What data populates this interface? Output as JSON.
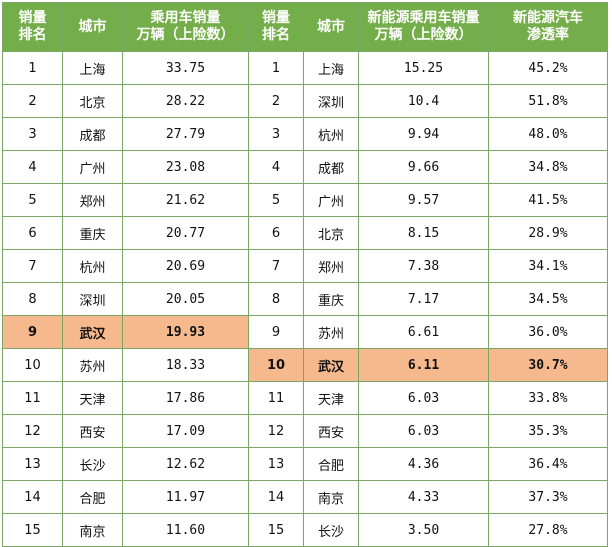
{
  "headers": {
    "rank_left": "销量\n排名",
    "city_left": "城市",
    "sales_left": "乘用车销量\n万辆（上险数）",
    "rank_right": "销量\n排名",
    "city_right": "城市",
    "sales_right": "新能源乘用车销量\n万辆（上险数）",
    "penetration": "新能源汽车\n渗透率"
  },
  "left_rows": [
    {
      "rank": "1",
      "city": "上海",
      "sales": "33.75"
    },
    {
      "rank": "2",
      "city": "北京",
      "sales": "28.22"
    },
    {
      "rank": "3",
      "city": "成都",
      "sales": "27.79"
    },
    {
      "rank": "4",
      "city": "广州",
      "sales": "23.08"
    },
    {
      "rank": "5",
      "city": "郑州",
      "sales": "21.62"
    },
    {
      "rank": "6",
      "city": "重庆",
      "sales": "20.77"
    },
    {
      "rank": "7",
      "city": "杭州",
      "sales": "20.69"
    },
    {
      "rank": "8",
      "city": "深圳",
      "sales": "20.05"
    },
    {
      "rank": "9",
      "city": "武汉",
      "sales": "19.93",
      "highlight": true
    },
    {
      "rank": "10",
      "city": "苏州",
      "sales": "18.33"
    },
    {
      "rank": "11",
      "city": "天津",
      "sales": "17.86"
    },
    {
      "rank": "12",
      "city": "西安",
      "sales": "17.09"
    },
    {
      "rank": "13",
      "city": "长沙",
      "sales": "12.62"
    },
    {
      "rank": "14",
      "city": "合肥",
      "sales": "11.97"
    },
    {
      "rank": "15",
      "city": "南京",
      "sales": "11.60"
    }
  ],
  "right_rows": [
    {
      "rank": "1",
      "city": "上海",
      "sales": "15.25",
      "rate": "45.2%"
    },
    {
      "rank": "2",
      "city": "深圳",
      "sales": "10.4",
      "rate": "51.8%"
    },
    {
      "rank": "3",
      "city": "杭州",
      "sales": "9.94",
      "rate": "48.0%"
    },
    {
      "rank": "4",
      "city": "成都",
      "sales": "9.66",
      "rate": "34.8%"
    },
    {
      "rank": "5",
      "city": "广州",
      "sales": "9.57",
      "rate": "41.5%"
    },
    {
      "rank": "6",
      "city": "北京",
      "sales": "8.15",
      "rate": "28.9%"
    },
    {
      "rank": "7",
      "city": "郑州",
      "sales": "7.38",
      "rate": "34.1%"
    },
    {
      "rank": "8",
      "city": "重庆",
      "sales": "7.17",
      "rate": "34.5%"
    },
    {
      "rank": "9",
      "city": "苏州",
      "sales": "6.61",
      "rate": "36.0%"
    },
    {
      "rank": "10",
      "city": "武汉",
      "sales": "6.11",
      "rate": "30.7%",
      "highlight": true
    },
    {
      "rank": "11",
      "city": "天津",
      "sales": "6.03",
      "rate": "33.8%"
    },
    {
      "rank": "12",
      "city": "西安",
      "sales": "6.03",
      "rate": "35.3%"
    },
    {
      "rank": "13",
      "city": "合肥",
      "sales": "4.36",
      "rate": "36.4%"
    },
    {
      "rank": "14",
      "city": "南京",
      "sales": "4.33",
      "rate": "37.3%"
    },
    {
      "rank": "15",
      "city": "长沙",
      "sales": "3.50",
      "rate": "27.8%"
    }
  ],
  "colors": {
    "header_bg": "#74ae4a",
    "highlight_bg": "#f6b98e",
    "border": "#7aa864"
  }
}
